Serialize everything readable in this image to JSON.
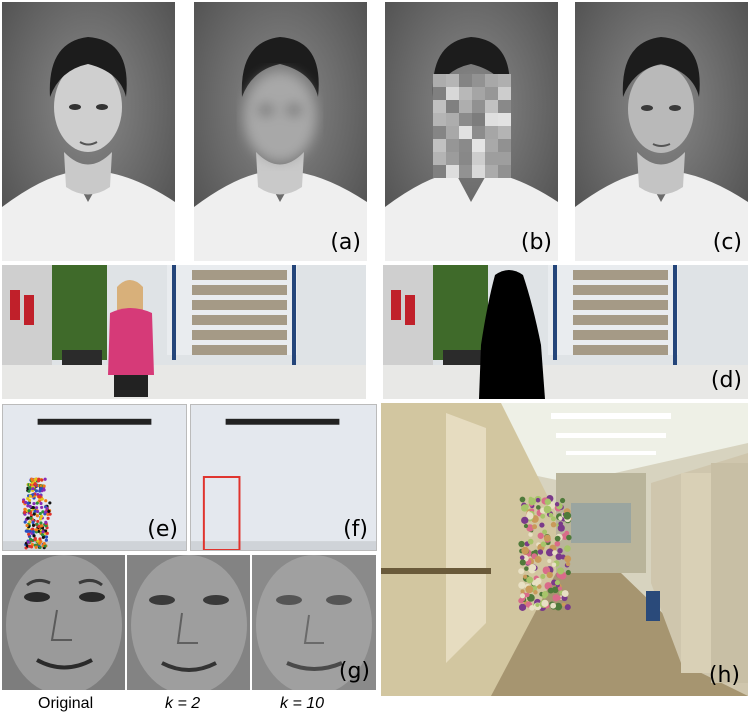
{
  "labels": {
    "a": "(a)",
    "b": "(b)",
    "c": "(c)",
    "d": "(d)",
    "e": "(e)",
    "f": "(f)",
    "g": "(g)",
    "h": "(h)"
  },
  "captions": {
    "original": "Original",
    "k2": "k = 2",
    "k10": "k = 10"
  },
  "colors": {
    "portrait_bg": "#6f6f6f",
    "shirt": "#f2f2f2",
    "jacket": "#d63a78",
    "silhouette": "#000000",
    "red_box": "#e0332d",
    "carpet": "#a69570",
    "cubicle": "#cfc6ad"
  }
}
